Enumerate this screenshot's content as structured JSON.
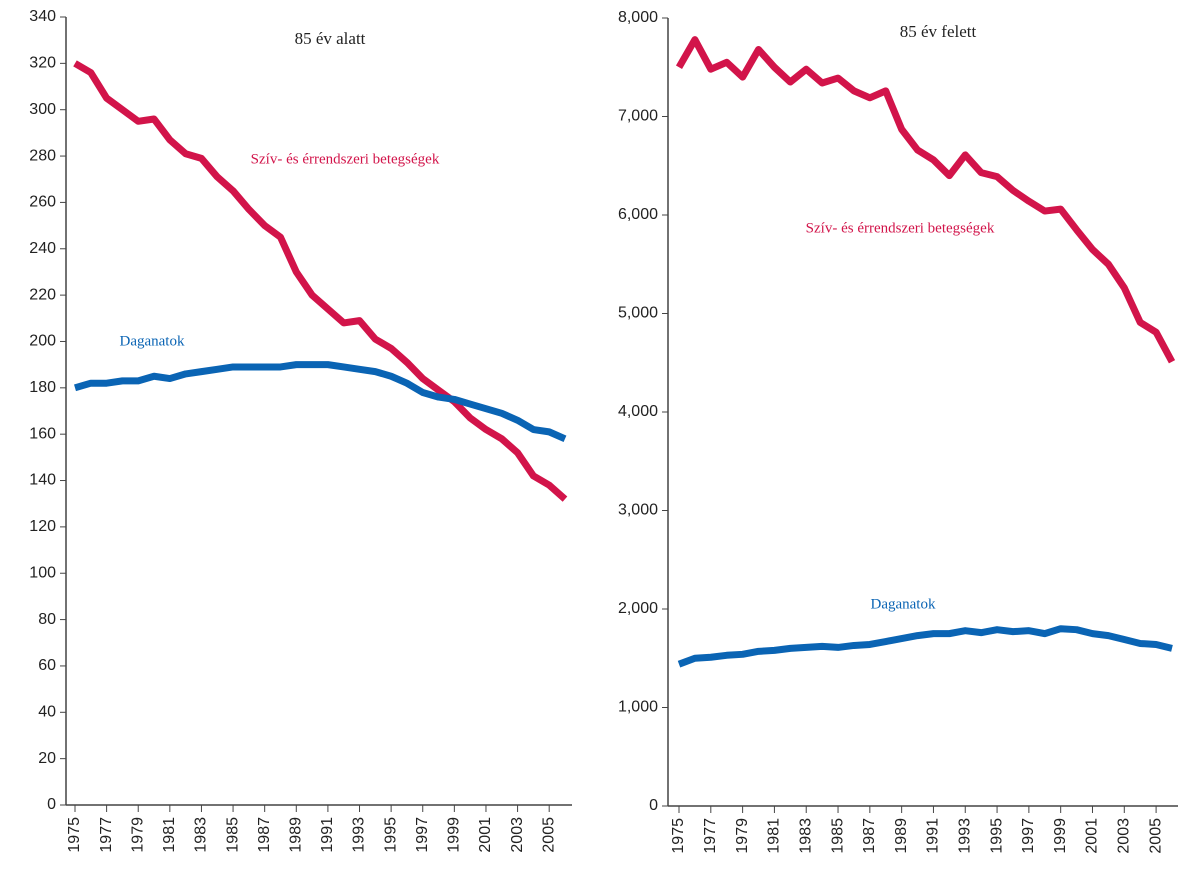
{
  "chart_data": [
    {
      "type": "line",
      "title": "85 év alatt",
      "x": [
        1975,
        1976,
        1977,
        1978,
        1979,
        1980,
        1981,
        1982,
        1983,
        1984,
        1985,
        1986,
        1987,
        1988,
        1989,
        1990,
        1991,
        1992,
        1993,
        1994,
        1995,
        1996,
        1997,
        1998,
        1999,
        2000,
        2001,
        2002,
        2003,
        2004,
        2005,
        2006
      ],
      "xlim": [
        1975,
        2006
      ],
      "xticks": [
        1975,
        1977,
        1979,
        1981,
        1983,
        1985,
        1987,
        1989,
        1991,
        1993,
        1995,
        1997,
        1999,
        2001,
        2003,
        2005
      ],
      "ylim": [
        0,
        340
      ],
      "yticks": [
        0,
        20,
        40,
        60,
        80,
        100,
        120,
        140,
        160,
        180,
        200,
        220,
        240,
        260,
        280,
        300,
        320,
        340
      ],
      "series": [
        {
          "name": "Szív- és érrendszeri betegségek",
          "color": "#d2144a",
          "values": [
            320,
            316,
            305,
            300,
            295,
            296,
            287,
            281,
            279,
            271,
            265,
            257,
            250,
            245,
            230,
            220,
            214,
            208,
            209,
            201,
            197,
            191,
            184,
            179,
            174,
            167,
            162,
            158,
            152,
            142,
            138,
            132
          ]
        },
        {
          "name": "Daganatok",
          "color": "#0a64b4",
          "values": [
            180,
            182,
            182,
            183,
            183,
            185,
            184,
            186,
            187,
            188,
            189,
            189,
            189,
            189,
            190,
            190,
            190,
            189,
            188,
            187,
            185,
            182,
            178,
            176,
            175,
            173,
            171,
            169,
            166,
            162,
            161,
            158
          ]
        }
      ]
    },
    {
      "type": "line",
      "title": "85 év felett",
      "x": [
        1975,
        1976,
        1977,
        1978,
        1979,
        1980,
        1981,
        1982,
        1983,
        1984,
        1985,
        1986,
        1987,
        1988,
        1989,
        1990,
        1991,
        1992,
        1993,
        1994,
        1995,
        1996,
        1997,
        1998,
        1999,
        2000,
        2001,
        2002,
        2003,
        2004,
        2005,
        2006
      ],
      "xlim": [
        1975,
        2006
      ],
      "xticks": [
        1975,
        1977,
        1979,
        1981,
        1983,
        1985,
        1987,
        1989,
        1991,
        1993,
        1995,
        1997,
        1999,
        2001,
        2003,
        2005
      ],
      "ylim": [
        0,
        8000
      ],
      "yticks": [
        0,
        {
          "value": 1000,
          "label": "1,000"
        },
        {
          "value": 2000,
          "label": "2,000"
        },
        {
          "value": 3000,
          "label": "3,000"
        },
        {
          "value": 4000,
          "label": "4,000"
        },
        {
          "value": 5000,
          "label": "5,000"
        },
        {
          "value": 6000,
          "label": "6,000"
        },
        {
          "value": 7000,
          "label": "7,000"
        },
        {
          "value": 8000,
          "label": "8,000"
        }
      ],
      "series": [
        {
          "name": "Szív- és érrendszeri betegségek",
          "color": "#d2144a",
          "values": [
            7500,
            7780,
            7480,
            7550,
            7400,
            7680,
            7500,
            7350,
            7480,
            7340,
            7390,
            7260,
            7190,
            7260,
            6870,
            6660,
            6560,
            6400,
            6610,
            6430,
            6390,
            6250,
            6140,
            6040,
            6060,
            5850,
            5650,
            5500,
            5260,
            4910,
            4810,
            4510
          ]
        },
        {
          "name": "Daganatok",
          "color": "#0a64b4",
          "values": [
            1440,
            1500,
            1510,
            1530,
            1540,
            1570,
            1580,
            1600,
            1610,
            1620,
            1610,
            1630,
            1640,
            1670,
            1700,
            1730,
            1750,
            1750,
            1780,
            1760,
            1790,
            1770,
            1780,
            1750,
            1800,
            1790,
            1750,
            1730,
            1690,
            1650,
            1640,
            1600
          ]
        }
      ]
    }
  ]
}
